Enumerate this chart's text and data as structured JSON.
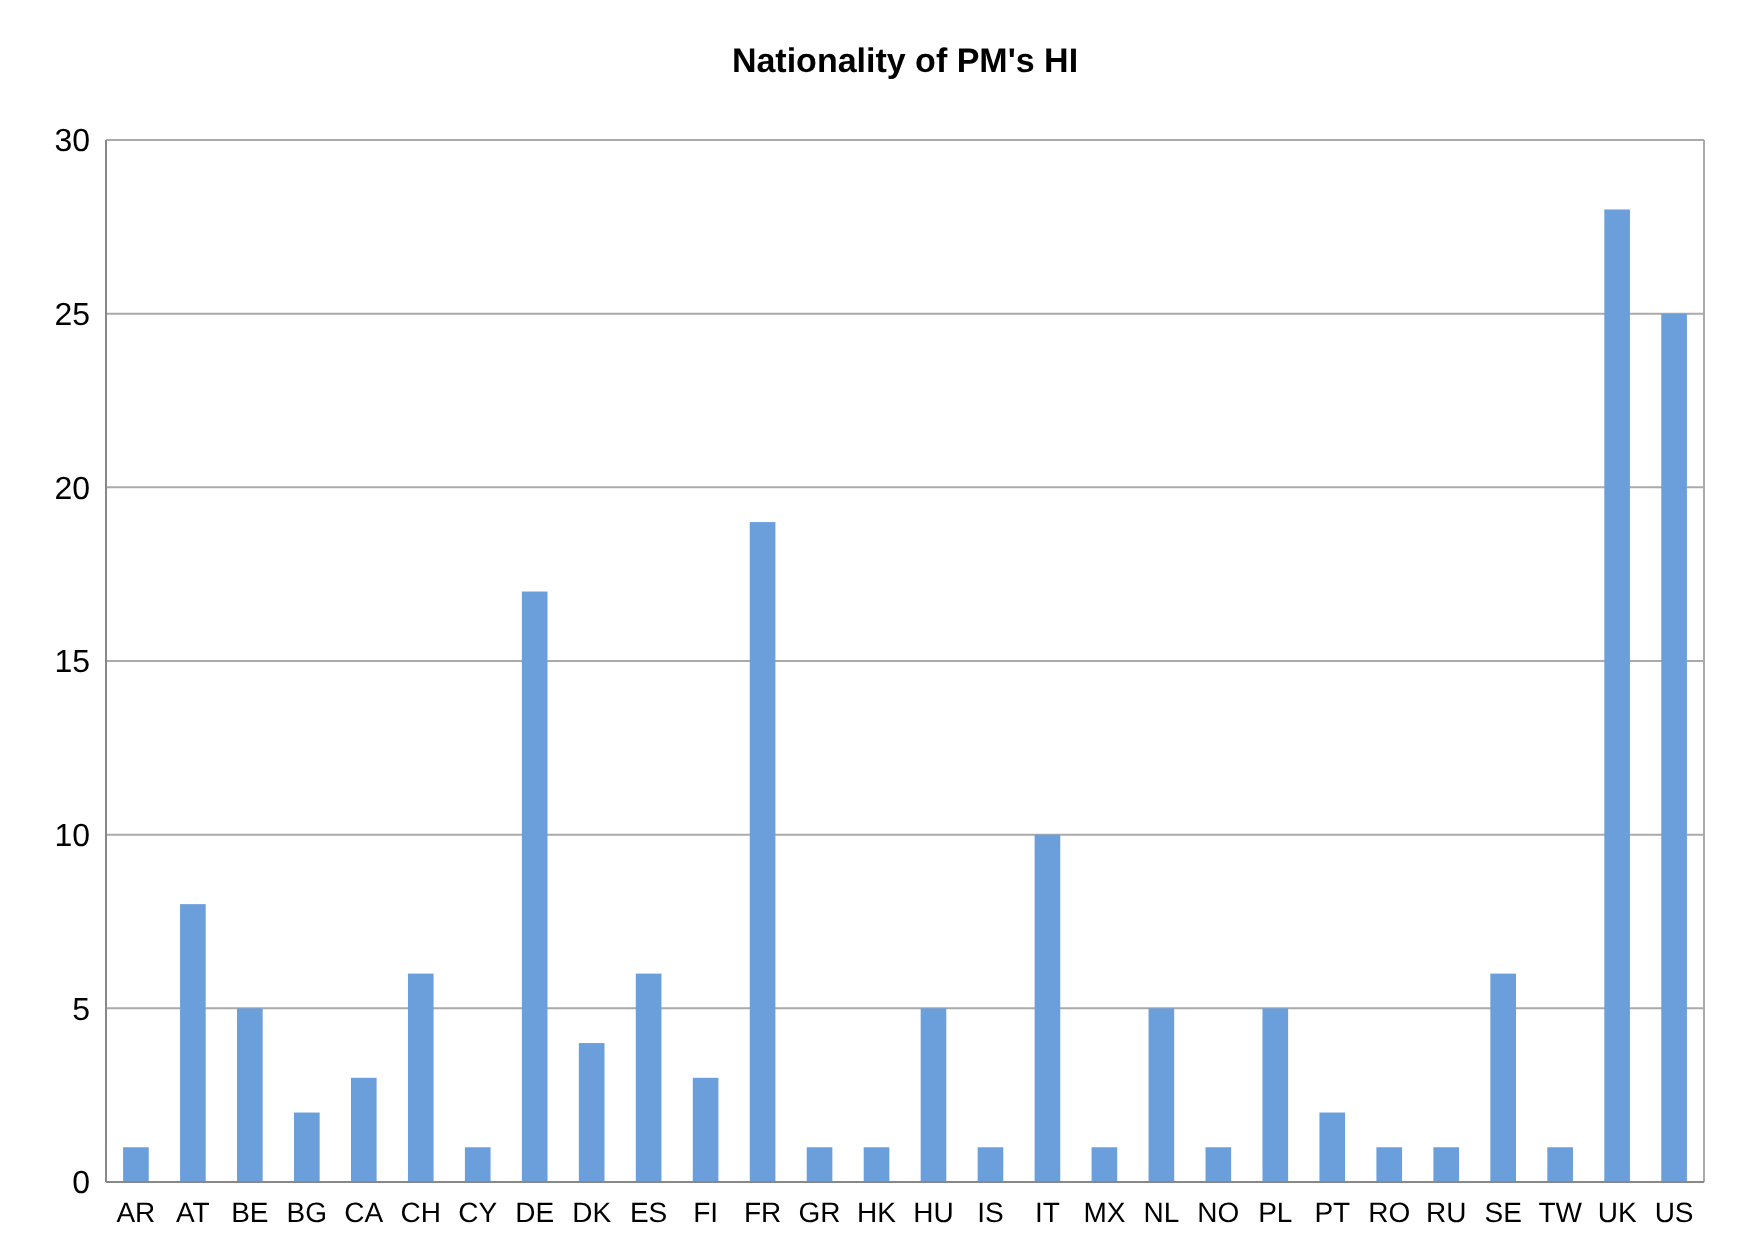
{
  "chart_data": {
    "type": "bar",
    "title": "Nationality of PM's HI",
    "categories": [
      "AR",
      "AT",
      "BE",
      "BG",
      "CA",
      "CH",
      "CY",
      "DE",
      "DK",
      "ES",
      "FI",
      "FR",
      "GR",
      "HK",
      "HU",
      "IS",
      "IT",
      "MX",
      "NL",
      "NO",
      "PL",
      "PT",
      "RO",
      "RU",
      "SE",
      "TW",
      "UK",
      "US"
    ],
    "values": [
      1,
      8,
      5,
      2,
      3,
      6,
      1,
      17,
      4,
      6,
      3,
      19,
      1,
      1,
      5,
      1,
      10,
      1,
      5,
      1,
      5,
      2,
      1,
      1,
      6,
      1,
      28,
      25
    ],
    "color": "#6a9fdc",
    "ylim": [
      0,
      30
    ],
    "yticks": [
      0,
      5,
      10,
      15,
      20,
      25,
      30
    ],
    "grid": "y"
  }
}
